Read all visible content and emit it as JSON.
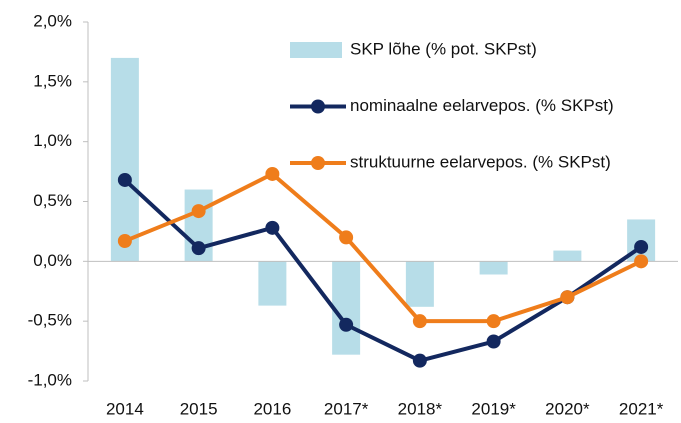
{
  "chart_data": {
    "type": "combo",
    "categories": [
      "2014",
      "2015",
      "2016",
      "2017*",
      "2018*",
      "2019*",
      "2020*",
      "2021*"
    ],
    "ylim": [
      -1.0,
      2.0
    ],
    "yticks": [
      {
        "value": -1.0,
        "label": "-1,0%"
      },
      {
        "value": -0.5,
        "label": "-0,5%"
      },
      {
        "value": 0.0,
        "label": "0,0%"
      },
      {
        "value": 0.5,
        "label": "0,5%"
      },
      {
        "value": 1.0,
        "label": "1,0%"
      },
      {
        "value": 1.5,
        "label": "1,5%"
      },
      {
        "value": 2.0,
        "label": "2,0%"
      }
    ],
    "grid": false,
    "legend": "top-right",
    "series": [
      {
        "name": "SKP lõhe (% pot. SKPst)",
        "type": "bar",
        "color": "#b7dde8",
        "values": [
          1.7,
          0.6,
          -0.37,
          -0.78,
          -0.38,
          -0.11,
          0.09,
          0.35
        ]
      },
      {
        "name": "nominaalne eelarvepos. (% SKPst)",
        "type": "line",
        "color": "#13285f",
        "values": [
          0.68,
          0.11,
          0.28,
          -0.53,
          -0.83,
          -0.67,
          -0.3,
          0.12
        ]
      },
      {
        "name": "struktuurne eelarvepos. (% SKPst)",
        "type": "line",
        "color": "#ef7d1b",
        "values": [
          0.17,
          0.42,
          0.73,
          0.2,
          -0.5,
          -0.5,
          -0.3,
          0.0
        ]
      }
    ]
  }
}
